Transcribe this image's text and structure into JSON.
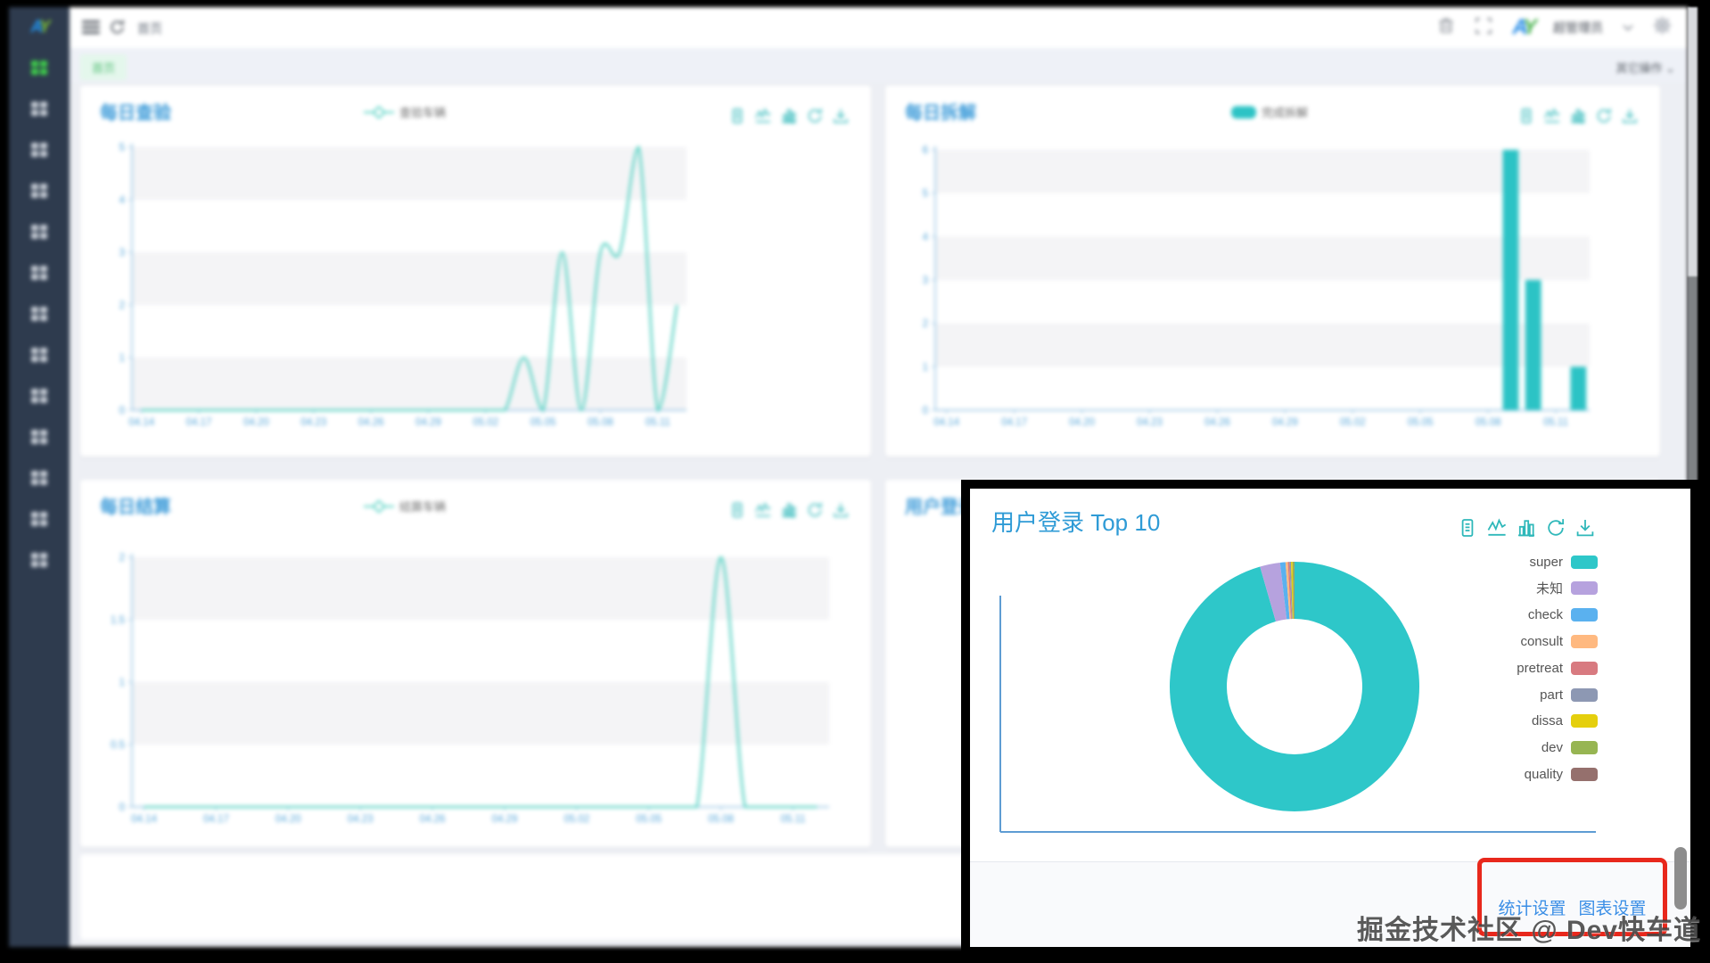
{
  "topbar": {
    "breadcrumb": "首页",
    "username": "超管理员",
    "logo_text": "AY"
  },
  "tabbar": {
    "active_tab": "首页",
    "more_actions": "其它操作"
  },
  "sidebar": {
    "logo_text": "AY",
    "item_count": 13
  },
  "icons": {
    "card_toolbar": [
      "doc-icon",
      "line-chart-icon",
      "bar-chart-icon",
      "refresh-icon",
      "download-icon"
    ]
  },
  "cards": [
    {
      "title": "每日查验",
      "legend": "查验车辆"
    },
    {
      "title": "每日拆解",
      "legend": "完成拆解"
    },
    {
      "title": "每日结算",
      "legend": "结算车辆"
    },
    {
      "title": "用户登录 Top 10"
    }
  ],
  "overlay": {
    "title": "用户登录 Top 10",
    "footer_links": [
      "统计设置",
      "图表设置"
    ]
  },
  "watermark": "掘金技术社区 @ Dev快车道",
  "colors": {
    "accent_teal": "#2cc3c5",
    "line_teal": "#5fd4c6",
    "title_blue": "#3c9bd9",
    "axis_blue": "#53a4d8",
    "link_blue": "#3a8ee6",
    "highlight_red": "#e8281c",
    "sidebar_bg": "#2e3b4e",
    "active_green": "#3ecf4a"
  },
  "chart_data": [
    {
      "type": "line",
      "title": "每日查验",
      "x_tick_labels": [
        "04.14",
        "04.17",
        "04.20",
        "04.23",
        "04.26",
        "04.29",
        "05.02",
        "05.05",
        "05.08",
        "05.11"
      ],
      "series": [
        {
          "name": "查验车辆",
          "values": [
            0,
            0,
            0,
            0,
            0,
            0,
            0,
            0,
            0,
            0,
            0,
            0,
            0,
            0,
            0,
            0,
            0,
            0,
            0,
            0,
            1,
            0,
            3,
            0,
            3,
            3,
            5,
            0,
            2
          ]
        }
      ],
      "ylim": [
        0,
        5
      ],
      "yticks": [
        0,
        1,
        2,
        3,
        4,
        5
      ],
      "smooth": true,
      "color": "#5fd4c6",
      "grid": true
    },
    {
      "type": "bar",
      "title": "每日拆解",
      "x_tick_labels": [
        "04.14",
        "04.17",
        "04.20",
        "04.23",
        "04.26",
        "04.29",
        "05.02",
        "05.05",
        "05.08",
        "05.11"
      ],
      "series": [
        {
          "name": "完成拆解",
          "values": [
            0,
            0,
            0,
            0,
            0,
            0,
            0,
            0,
            0,
            0,
            0,
            0,
            0,
            0,
            0,
            0,
            0,
            0,
            0,
            0,
            0,
            0,
            0,
            0,
            0,
            6,
            3,
            0,
            1
          ]
        }
      ],
      "ylim": [
        0,
        6
      ],
      "yticks": [
        0,
        1,
        2,
        3,
        4,
        5,
        6
      ],
      "color": "#2cc3c5",
      "grid": true
    },
    {
      "type": "line",
      "title": "每日结算",
      "x_tick_labels": [
        "04.14",
        "04.17",
        "04.20",
        "04.23",
        "04.26",
        "04.29",
        "05.02",
        "05.05",
        "05.08",
        "05.11"
      ],
      "series": [
        {
          "name": "结算车辆",
          "values": [
            0,
            0,
            0,
            0,
            0,
            0,
            0,
            0,
            0,
            0,
            0,
            0,
            0,
            0,
            0,
            0,
            0,
            0,
            0,
            0,
            0,
            0,
            0,
            0,
            2,
            0,
            0,
            0,
            0
          ]
        }
      ],
      "ylim": [
        0,
        2
      ],
      "yticks": [
        0,
        0.5,
        1,
        1.5,
        2
      ],
      "smooth": true,
      "color": "#5fd4c6",
      "grid": true
    },
    {
      "type": "pie",
      "title": "用户登录 Top 10",
      "donut": true,
      "legend_position": "right",
      "items": [
        {
          "name": "super",
          "value": 955,
          "color": "#2ec7c9"
        },
        {
          "name": "未知",
          "value": 26,
          "color": "#b6a2de"
        },
        {
          "name": "check",
          "value": 7,
          "color": "#5ab1ef"
        },
        {
          "name": "consult",
          "value": 3,
          "color": "#ffb980"
        },
        {
          "name": "pretreat",
          "value": 2,
          "color": "#d87a80"
        },
        {
          "name": "part",
          "value": 2,
          "color": "#8d98b3"
        },
        {
          "name": "dissa",
          "value": 2,
          "color": "#e5cf0d"
        },
        {
          "name": "dev",
          "value": 2,
          "color": "#97b552"
        },
        {
          "name": "quality",
          "value": 1,
          "color": "#95706d"
        }
      ]
    }
  ]
}
